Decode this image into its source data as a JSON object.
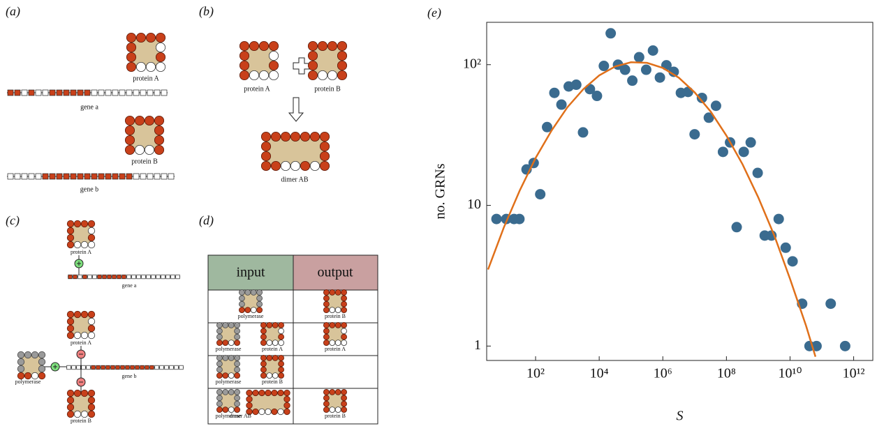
{
  "panels": {
    "a": {
      "label": "(a)",
      "protein_a": "protein A",
      "gene_a": "gene a",
      "protein_b": "protein B",
      "gene_b": "gene b"
    },
    "b": {
      "label": "(b)",
      "protein_a": "protein A",
      "protein_b": "protein B",
      "dimer": "dimer AB"
    },
    "c": {
      "label": "(c)",
      "protein_a_top": "protein A",
      "gene_a": "gene a",
      "protein_a": "protein A",
      "polymerase": "polymerase",
      "gene_b": "gene b",
      "protein_b": "protein B"
    },
    "d": {
      "label": "(d)",
      "header": [
        "input",
        "output"
      ],
      "rows": [
        {
          "input": [
            "polymerase"
          ],
          "output": "protein B"
        },
        {
          "input": [
            "polymerase",
            "protein A"
          ],
          "output": "protein A"
        },
        {
          "input": [
            "polymerase",
            "protein B"
          ]
        },
        {
          "input": [
            "polymerase",
            "dimer AB"
          ],
          "output": "protein B"
        }
      ]
    }
  },
  "chart_data": {
    "type": "scatter",
    "label": "(e)",
    "xlabel": "S",
    "ylabel": "no. GRNs",
    "xscale": "log",
    "yscale": "log",
    "xlim": [
      2.9,
      4000000000000
    ],
    "ylim": [
      0.79,
      200
    ],
    "xticks": [
      {
        "value": 100,
        "label": "10²"
      },
      {
        "value": 10000,
        "label": "10⁴"
      },
      {
        "value": 1000000,
        "label": "10⁶"
      },
      {
        "value": 100000000,
        "label": "10⁸"
      },
      {
        "value": 10000000000,
        "label": "10¹⁰"
      },
      {
        "value": 1000000000000,
        "label": "10¹²"
      }
    ],
    "yticks": [
      1,
      10,
      {
        "value": 100,
        "label": "10²"
      }
    ],
    "series": [
      {
        "type": "scatter",
        "color": "#3a6b8f",
        "x": [
          5.9,
          12,
          21,
          31,
          52,
          87,
          140,
          230,
          390,
          650,
          1100,
          1900,
          3100,
          5100,
          8500,
          14000,
          23000,
          39000,
          65000,
          110000,
          180000,
          300000,
          490000,
          810000,
          1300000,
          2200000,
          3700000,
          6200000,
          10000000,
          17000000,
          28000000,
          47000000,
          78000000,
          130000000,
          210000000,
          350000000,
          580000000,
          960000000,
          1600000000,
          2600000000,
          4400000000,
          7300000000,
          12000000000,
          24000000000,
          41000000000,
          68000000000,
          190000000000,
          540000000000
        ],
        "values": [
          8,
          8,
          8,
          8,
          18,
          20,
          12,
          36,
          63,
          52,
          70,
          72,
          33,
          67,
          60,
          98,
          167,
          100,
          92,
          77,
          113,
          92,
          126,
          81,
          99,
          89,
          63,
          64,
          32,
          58,
          42,
          51,
          24,
          28,
          7,
          24,
          28,
          17,
          6.1,
          6.1,
          8,
          5,
          4,
          2,
          1,
          1,
          2,
          1
        ]
      },
      {
        "type": "line",
        "color": "#e0701a",
        "x": [
          3.2,
          10,
          32,
          100,
          320,
          1000,
          3200,
          10000,
          32000,
          100000,
          320000,
          1000000,
          3200000,
          10000000,
          32000000,
          100000000,
          320000000,
          1000000000,
          3200000000,
          10000000000,
          32000000000,
          63000000000
        ],
        "values": [
          3.5,
          6.95,
          12.8,
          21.7,
          34.1,
          49.8,
          67.1,
          83.9,
          97.1,
          104,
          103,
          94.8,
          80.7,
          63.6,
          46.4,
          31.3,
          19.6,
          11.4,
          6.1,
          3.0,
          1.39,
          0.84
        ]
      }
    ]
  }
}
